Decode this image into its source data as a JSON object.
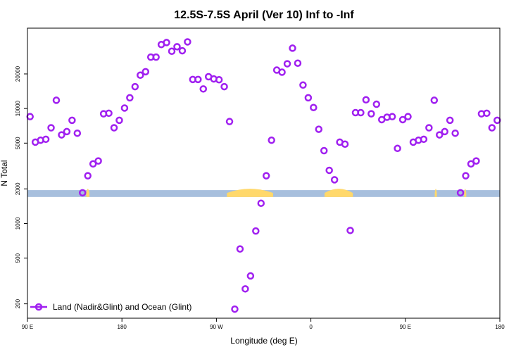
{
  "chart_data": {
    "type": "scatter",
    "title": "12.5S-7.5S April (Ver 10)   Inf to -Inf",
    "xlabel": "Longitude (deg E)",
    "ylabel": "N Total",
    "x_scale": "linear",
    "y_scale": "log",
    "xlim": [
      90,
      540
    ],
    "ylim": [
      150,
      50000
    ],
    "x_ticks": [
      {
        "value": 90,
        "label": "90 E"
      },
      {
        "value": 180,
        "label": "180"
      },
      {
        "value": 270,
        "label": "90 W"
      },
      {
        "value": 360,
        "label": "0"
      },
      {
        "value": 450,
        "label": "90 E"
      },
      {
        "value": 540,
        "label": "180"
      }
    ],
    "y_ticks": [
      {
        "value": 200,
        "label": "200"
      },
      {
        "value": 500,
        "label": "500"
      },
      {
        "value": 1000,
        "label": "1000"
      },
      {
        "value": 2000,
        "label": "2000"
      },
      {
        "value": 5000,
        "label": "5000"
      },
      {
        "value": 10000,
        "label": "10000"
      },
      {
        "value": 20000,
        "label": "20000"
      }
    ],
    "grid": false,
    "legend": {
      "position": "bottom-left"
    },
    "series": [
      {
        "name": "Land (Nadir&Glint) and Ocean (Glint)",
        "color": "#a020f0",
        "marker": "open-circle",
        "x": [
          92.5,
          97.5,
          102.5,
          107.5,
          112.5,
          117.5,
          122.5,
          127.5,
          132.5,
          137.5,
          142.5,
          147.5,
          152.5,
          157.5,
          162.5,
          167.5,
          172.5,
          177.5,
          182.5,
          187.5,
          192.5,
          197.5,
          202.5,
          207.5,
          212.5,
          217.5,
          222.5,
          227.5,
          232.5,
          237.5,
          242.5,
          247.5,
          252.5,
          257.5,
          262.5,
          267.5,
          272.5,
          277.5,
          282.5,
          287.5,
          292.5,
          297.5,
          302.5,
          307.5,
          312.5,
          317.5,
          322.5,
          327.5,
          332.5,
          337.5,
          342.5,
          347.5,
          352.5,
          357.5,
          362.5,
          367.5,
          372.5,
          377.5,
          382.5,
          387.5,
          392.5,
          397.5,
          402.5,
          407.5,
          412.5,
          417.5,
          422.5,
          427.5,
          432.5,
          437.5,
          442.5,
          447.5,
          452.5,
          457.5,
          462.5,
          467.5,
          472.5,
          477.5,
          482.5,
          487.5,
          492.5,
          497.5,
          502.5,
          507.5,
          512.5,
          517.5,
          522.5,
          527.5,
          532.5,
          537.5
        ],
        "y": [
          8500,
          5100,
          5300,
          5400,
          6800,
          11800,
          5900,
          6300,
          7900,
          6100,
          1850,
          2600,
          3300,
          3500,
          9000,
          9100,
          6800,
          7900,
          10100,
          12400,
          15500,
          19500,
          20900,
          28000,
          28000,
          36000,
          37500,
          31500,
          34500,
          31800,
          38000,
          17900,
          17900,
          14800,
          18900,
          18100,
          17800,
          15500,
          7700,
          180,
          600,
          270,
          350,
          860,
          1500,
          2600,
          5300,
          21600,
          20700,
          24500,
          33500,
          24800,
          16000,
          12400,
          10200,
          6600,
          4300,
          2900,
          2400,
          5100,
          4900,
          870,
          9200,
          9200,
          11900,
          9000,
          10900,
          8000,
          8400,
          8500,
          4500,
          8000,
          8500,
          5100,
          5300,
          5400,
          6800,
          11800,
          5900,
          6300,
          7900,
          6100,
          1850,
          2600,
          3300,
          3500,
          9000,
          9100,
          6800,
          7900
        ]
      }
    ],
    "background_band": {
      "y_range": [
        1700,
        1950
      ],
      "ocean_color": "#a7bfdd",
      "land_color": "#ffd86b",
      "land_segments": [
        [
          146,
          149
        ],
        [
          280,
          324
        ],
        [
          373,
          400
        ],
        [
          478,
          480
        ],
        [
          506,
          508
        ]
      ]
    }
  }
}
